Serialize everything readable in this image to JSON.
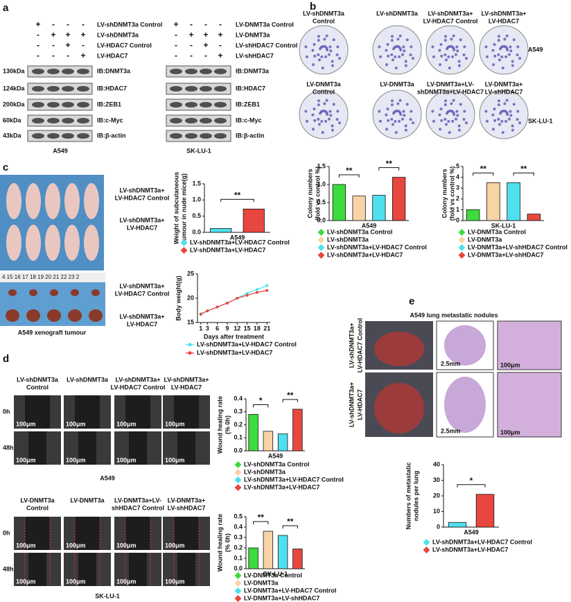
{
  "panels": [
    "a",
    "b",
    "c",
    "d",
    "e"
  ],
  "blots": [
    {
      "rows": [
        {
          "name": "LV-shDNMT3a Control",
          "signs": [
            "+",
            "-",
            "-",
            "-"
          ]
        },
        {
          "name": "LV-shDNMT3a",
          "signs": [
            "-",
            "+",
            "+",
            "+"
          ]
        },
        {
          "name": "LV-HDAC7 Control",
          "signs": [
            "-",
            "-",
            "+",
            "-"
          ]
        },
        {
          "name": "LV-HDAC7",
          "signs": [
            "-",
            "-",
            "-",
            "+"
          ]
        }
      ],
      "markers": [
        "130kDa",
        "124kDa",
        "200kDa",
        "60kDa",
        "43kDa"
      ],
      "ib": [
        "IB:DNMT3a",
        "IB:HDAC7",
        "IB:ZEB1",
        "IB:c-Myc",
        "IB:β-actin"
      ],
      "cell": "A549"
    },
    {
      "rows": [
        {
          "name": "LV-DNMT3a Control",
          "signs": [
            "+",
            "-",
            "-",
            "-"
          ]
        },
        {
          "name": "LV-DNMT3a",
          "signs": [
            "-",
            "+",
            "+",
            "+"
          ]
        },
        {
          "name": "LV-shHDAC7 Control",
          "signs": [
            "-",
            "-",
            "+",
            "-"
          ]
        },
        {
          "name": "LV-shHDAC7",
          "signs": [
            "-",
            "-",
            "-",
            "+"
          ]
        }
      ],
      "ib": [
        "IB:DNMT3a",
        "IB:HDAC7",
        "IB:ZEB1",
        "IB:c-Myc",
        "IB:β-actin"
      ],
      "cell": "SK-LU-1"
    }
  ],
  "colonies": [
    {
      "titles": [
        [
          "LV-shDNMT3a",
          "Control"
        ],
        [
          "LV-shDNMT3a"
        ],
        [
          "LV-shDNMT3a+",
          "LV-HDAC7 Control"
        ],
        [
          "LV-shDNMT3a+",
          "LV-HDAC7"
        ]
      ],
      "cell": "A549"
    },
    {
      "titles": [
        [
          "LV-DNMT3a",
          "Control"
        ],
        [
          "LV-DNMT3a"
        ],
        [
          "LV-DNMT3a+LV-",
          "shDNMT3a+LV-HDAC7"
        ],
        [
          "LV-DNMT3a+",
          "LV-shHDAC7"
        ]
      ],
      "cell": "SK-LU-1"
    }
  ],
  "mice": {
    "labels": [
      [
        "LV-shDNMT3a+",
        "LV-HDAC7 Control"
      ],
      [
        "LV-shDNMT3a+",
        "LV-HDAC7"
      ],
      [
        "LV-shDNMT3a+",
        "LV-HDAC7 Control"
      ],
      [
        "LV-shDNMT3a+",
        "LV-HDAC7"
      ]
    ],
    "ruler": "4  15  16  17  18  19  20  21  22  23  2",
    "caption": "A549 xenograft tumour"
  },
  "wound": [
    {
      "titles": [
        [
          "LV-shDNMT3a",
          "Control"
        ],
        [
          "LV-shDNMT3a"
        ],
        [
          "LV-shDNMT3a+",
          "LV-HDAC7 Control"
        ],
        [
          "LV-shDNMT3a+",
          "LV-HDAC7"
        ]
      ],
      "times": [
        "0h",
        "48h"
      ],
      "scale": "100μm",
      "cell": "A549"
    },
    {
      "titles": [
        [
          "LV-DNMT3a",
          "Control"
        ],
        [
          "LV-DNMT3a"
        ],
        [
          "LV-DNMT3a+LV-",
          "shHDAC7 Control"
        ],
        [
          "LV-DNMT3a+",
          "LV-shHDAC7"
        ]
      ],
      "times": [
        "0h",
        "48h"
      ],
      "scale": "100μm",
      "cell": "SK-LU-1"
    }
  ],
  "lung": {
    "title": "A549 lung metastatic nodules",
    "rows": [
      [
        "LV-shDNMT3a+",
        "LV-HDAC7 Control"
      ],
      [
        "LV-shDNMT3a+",
        "LV-HDAC7"
      ]
    ],
    "scales": [
      "2.5mm",
      "100μm"
    ]
  },
  "chart_data": [
    {
      "type": "bar",
      "ylabel": [
        "Colony numbers",
        "(fold vs control %)"
      ],
      "xlabel": "A549",
      "series": [
        {
          "name": "LV-shDNMT3a Control",
          "color": "#3ddc3d",
          "values": [
            1.0
          ]
        },
        {
          "name": "LV-shDNMT3a",
          "color": "#f8d3a6",
          "values": [
            0.68
          ]
        },
        {
          "name": "LV-shDNMT3a+LV-HDAC7 Control",
          "color": "#4fe0ef",
          "values": [
            0.7
          ]
        },
        {
          "name": "LV-shDNMT3a+LV-HDAC7",
          "color": "#e8473f",
          "values": [
            1.2
          ]
        }
      ],
      "ylim": [
        0,
        1.5
      ],
      "yticks": [
        {
          "value": 0,
          "label": "0.0"
        },
        {
          "value": 0.5,
          "label": "0.5"
        },
        {
          "value": 1,
          "label": "1.0"
        },
        {
          "value": 1.5,
          "label": "1.5"
        }
      ],
      "annotations": [
        "**",
        "**"
      ]
    },
    {
      "type": "bar",
      "ylabel": [
        "Colony numbers",
        "(fold vs control %)"
      ],
      "xlabel": "SK-LU-1",
      "series": [
        {
          "name": "LV-DNMT3a Control",
          "color": "#3ddc3d",
          "values": [
            1.0
          ]
        },
        {
          "name": "LV-DNMT3a",
          "color": "#f8d3a6",
          "values": [
            3.5
          ]
        },
        {
          "name": "LV-DNMT3a+LV-shHDAC7 Control",
          "color": "#4fe0ef",
          "values": [
            3.5
          ]
        },
        {
          "name": "LV-DNMT3a+LV-shHDAC7",
          "color": "#e8473f",
          "values": [
            0.6
          ]
        }
      ],
      "ylim": [
        0,
        5
      ],
      "yticks": [
        0,
        1,
        2,
        3,
        4,
        5
      ],
      "annotations": [
        "**",
        "**"
      ]
    },
    {
      "type": "bar",
      "ylabel": [
        "Weight of subcutaneous",
        "tumour in nude mice(g)"
      ],
      "xlabel": "A549",
      "series": [
        {
          "name": "LV-shDNMT3a+LV-HDAC7 Control",
          "color": "#4fe0ef",
          "values": [
            0.12
          ]
        },
        {
          "name": "LV-shDNMT3a+LV-HDAC7",
          "color": "#e8473f",
          "values": [
            0.72
          ]
        }
      ],
      "ylim": [
        0,
        1.5
      ],
      "yticks": [
        {
          "value": 0,
          "label": "0.0"
        },
        {
          "value": 0.5,
          "label": "0.5"
        },
        {
          "value": 1,
          "label": "1.0"
        },
        {
          "value": 1.5,
          "label": "1.5"
        }
      ],
      "annotations": [
        "**"
      ]
    },
    {
      "type": "line",
      "ylabel": [
        "Body weight(g)"
      ],
      "xlabel": "Days after treatment",
      "x": [
        1,
        3,
        6,
        9,
        12,
        15,
        18,
        21
      ],
      "xlim": [
        0,
        22
      ],
      "xticks": [
        1,
        3,
        6,
        9,
        12,
        15,
        18,
        21
      ],
      "ylim": [
        15,
        25
      ],
      "yticks": [
        15,
        20,
        25
      ],
      "series": [
        {
          "name": "LV-shDNMT3a+LV-HDAC7 Control",
          "color": "#4fe0ef",
          "values": [
            16.8,
            17.4,
            18.2,
            19.0,
            20.0,
            21.0,
            21.8,
            22.6
          ]
        },
        {
          "name": "LV-shDNMT3a+LV-HDAC7",
          "color": "#e8473f",
          "values": [
            16.7,
            17.4,
            18.2,
            19.0,
            20.0,
            20.6,
            21.2,
            21.6
          ]
        }
      ]
    },
    {
      "type": "bar",
      "ylabel": [
        "Wound healing rate",
        "(% 0h)"
      ],
      "xlabel": "A549",
      "series": [
        {
          "name": "LV-shDNMT3a Control",
          "color": "#3ddc3d",
          "values": [
            0.28
          ]
        },
        {
          "name": "LV-shDNMT3a",
          "color": "#f8d3a6",
          "values": [
            0.15
          ]
        },
        {
          "name": "LV-shDNMT3a+LV-HDAC7 Control",
          "color": "#4fe0ef",
          "values": [
            0.13
          ]
        },
        {
          "name": "LV-shDNMT3a+LV-HDAC7",
          "color": "#e8473f",
          "values": [
            0.32
          ]
        }
      ],
      "ylim": [
        0,
        0.4
      ],
      "yticks": [
        {
          "value": 0,
          "label": "0.0"
        },
        0.1,
        0.2,
        0.3,
        0.4
      ],
      "annotations": [
        "*",
        "**"
      ]
    },
    {
      "type": "bar",
      "ylabel": [
        "Wound healing rate",
        "(% 0h)"
      ],
      "xlabel": "SK-LU-1",
      "series": [
        {
          "name": "LV-DNMT3a Control",
          "color": "#3ddc3d",
          "values": [
            0.2
          ]
        },
        {
          "name": "LV-DNMT3a",
          "color": "#f8d3a6",
          "values": [
            0.36
          ]
        },
        {
          "name": "LV-DNMT3a+LV-HDAC7 Control",
          "color": "#4fe0ef",
          "values": [
            0.32
          ]
        },
        {
          "name": "LV-DNMT3a+LV-shHDAC7",
          "color": "#e8473f",
          "values": [
            0.19
          ]
        }
      ],
      "ylim": [
        0,
        0.5
      ],
      "yticks": [
        {
          "value": 0,
          "label": "0.0"
        },
        0.1,
        0.2,
        0.3,
        0.4,
        0.5
      ],
      "annotations": [
        "**",
        "**"
      ]
    },
    {
      "type": "bar",
      "ylabel": [
        "Numbers of metastatic",
        "nodules per lung"
      ],
      "xlabel": "A549",
      "series": [
        {
          "name": "LV-shDNMT3a+LV-HDAC7 Control",
          "color": "#4fe0ef",
          "values": [
            3
          ]
        },
        {
          "name": "LV-shDNMT3a+LV-HDAC7",
          "color": "#e8473f",
          "values": [
            21
          ]
        }
      ],
      "ylim": [
        0,
        40
      ],
      "yticks": [
        0,
        10,
        20,
        30,
        40
      ],
      "annotations": [
        "*"
      ]
    }
  ]
}
